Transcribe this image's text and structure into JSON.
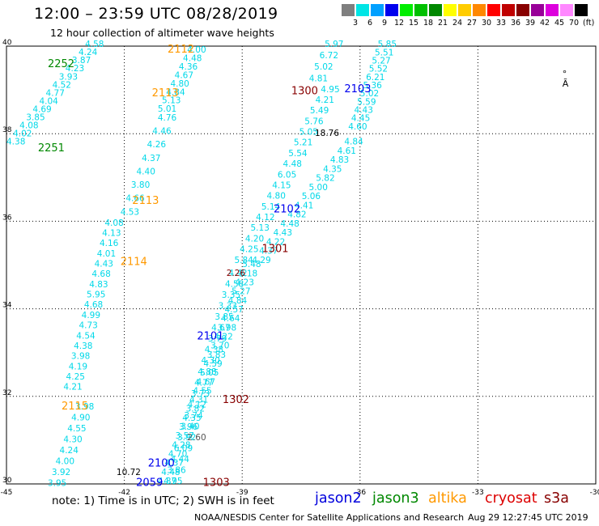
{
  "header": {
    "title": "12:00 – 23:59 UTC 08/28/2019",
    "subtitle": "12 hour collection of altimeter wave heights"
  },
  "legend": {
    "colors": [
      "#7f7f7f",
      "#00e5e5",
      "#00a0ff",
      "#0000ee",
      "#00ee00",
      "#00c000",
      "#008800",
      "#ffff00",
      "#ffcc00",
      "#ff8800",
      "#ff0000",
      "#c00000",
      "#880000",
      "#990099",
      "#dd00dd",
      "#ff88ff",
      "#000000"
    ],
    "labels": [
      "3",
      "6",
      "9",
      "12",
      "15",
      "18",
      "21",
      "24",
      "27",
      "30",
      "33",
      "36",
      "39",
      "42",
      "45",
      "70"
    ],
    "unit": "(ft)"
  },
  "axes": {
    "lon_ticks": [
      "-45",
      "-42",
      "-39",
      "-36",
      "-33",
      "-30"
    ],
    "lat_ticks": [
      "30",
      "32",
      "34",
      "36",
      "38",
      "40"
    ]
  },
  "land_marker": {
    "text": "°\nÃ",
    "color": "#000000"
  },
  "pass_labels": [
    {
      "text": "2252",
      "color": "#008800",
      "lon": -43.95,
      "lat": 39.52
    },
    {
      "text": "2251",
      "color": "#008800",
      "lon": -44.2,
      "lat": 37.6
    },
    {
      "text": "2112",
      "color": "#ff9900",
      "lon": -40.9,
      "lat": 39.85
    },
    {
      "text": "2113",
      "color": "#ff9900",
      "lon": -41.3,
      "lat": 38.85
    },
    {
      "text": "2113",
      "color": "#ff9900",
      "lon": -41.8,
      "lat": 36.4
    },
    {
      "text": "2114",
      "color": "#ff9900",
      "lon": -42.1,
      "lat": 35.0
    },
    {
      "text": "2115",
      "color": "#ff9900",
      "lon": -43.6,
      "lat": 31.7
    },
    {
      "text": "1300",
      "color": "#880000",
      "lon": -37.75,
      "lat": 38.9
    },
    {
      "text": "2103",
      "color": "#0000ee",
      "lon": -36.4,
      "lat": 38.95
    },
    {
      "text": "2102",
      "color": "#0000ee",
      "lon": -38.2,
      "lat": 36.2
    },
    {
      "text": "1301",
      "color": "#880000",
      "lon": -38.5,
      "lat": 35.3
    },
    {
      "text": "2101",
      "color": "#0000ee",
      "lon": -40.15,
      "lat": 33.3
    },
    {
      "text": "1302",
      "color": "#880000",
      "lon": -39.5,
      "lat": 31.85
    },
    {
      "text": "2100",
      "color": "#0000ee",
      "lon": -41.4,
      "lat": 30.4
    },
    {
      "text": "2059",
      "color": "#0000ee",
      "lon": -41.7,
      "lat": 29.95
    },
    {
      "text": "1303",
      "color": "#880000",
      "lon": -40.0,
      "lat": 29.95
    }
  ],
  "wave_heights": [
    {
      "color": "#00d8e8",
      "lon0": -43.0,
      "lat0": 39.98,
      "lon1": -45.0,
      "lat1": 37.75,
      "values": [
        "4.58",
        "4.24",
        "3.87",
        "4.23",
        "3.93",
        "4.52",
        "4.77",
        "4.04",
        "4.69",
        "3.85",
        "4.08",
        "4.02",
        "4.38"
      ]
    },
    {
      "color": "#00d8e8",
      "lon0": -40.4,
      "lat0": 39.85,
      "lat1": 38.5,
      "lon1": -41.15,
      "values": [
        "4.00",
        "4.48",
        "4.36",
        "4.67",
        "4.80",
        "4.84",
        "5.13",
        "5.01"
      ]
    },
    {
      "color": "#00d8e8",
      "lon0": -41.15,
      "lat0": 38.3,
      "lon1": -42.1,
      "lat1": 36.15,
      "values": [
        "4.76",
        "4.46",
        "4.26",
        "4.37",
        "4.40",
        "3.80",
        "4.66",
        "4.53"
      ]
    },
    {
      "color": "#00d8e8",
      "lon0": -42.5,
      "lat0": 35.9,
      "lon1": -43.55,
      "lat1": 32.15,
      "values": [
        "4.08",
        "4.13",
        "4.16",
        "4.01",
        "4.43",
        "4.68",
        "4.83",
        "5.95",
        "4.68",
        "4.99",
        "4.73",
        "4.54",
        "4.38",
        "3.98",
        "4.19",
        "4.25",
        "4.21"
      ]
    },
    {
      "color": "#00d8e8",
      "lon0": -43.25,
      "lat0": 31.7,
      "lon1": -43.95,
      "lat1": 29.95,
      "values": [
        "3.98",
        "4.90",
        "4.55",
        "4.30",
        "4.24",
        "4.00",
        "3.92",
        "3.95"
      ]
    },
    {
      "color": "#00d8e8",
      "lon0": -36.9,
      "lat0": 39.98,
      "lon1": -37.3,
      "lat1": 39.2,
      "values": [
        "5.97",
        "6.72",
        "5.02",
        "4.81"
      ]
    },
    {
      "color": "#00d8e8",
      "lon0": -37.0,
      "lat0": 38.95,
      "lon1": -39.2,
      "lat1": 35.05,
      "values": [
        "4.95",
        "4.21",
        "5.49",
        "5.76",
        "5.05",
        "5.21",
        "5.54",
        "4.48",
        "6.05",
        "4.15",
        "4.80",
        "5.14",
        "4.12",
        "5.13",
        "4.20",
        "4.25",
        "5.84"
      ]
    },
    {
      "color": "#00d8e8",
      "lon0": -35.55,
      "lat0": 39.98,
      "lon1": -36.3,
      "lat1": 38.1,
      "values": [
        "5.85",
        "5.51",
        "5.27",
        "5.52",
        "6.21",
        "5.36",
        "5.02",
        "5.59",
        "4.43",
        "4.45",
        "4.60"
      ]
    },
    {
      "color": "#00d8e8",
      "lon0": -36.4,
      "lat0": 37.75,
      "lon1": -38.75,
      "lat1": 35.05,
      "values": [
        "4.84",
        "4.61",
        "4.83",
        "4.35",
        "5.82",
        "5.00",
        "5.06",
        "4.41",
        "4.82",
        "4.48",
        "4.43",
        "4.22",
        "4.37",
        "4.29"
      ]
    },
    {
      "color": "#00d8e8",
      "lon0": -39.0,
      "lat0": 34.95,
      "lon1": -41.15,
      "lat1": 30.0,
      "values": [
        "5.48",
        "3.18",
        "4.23",
        "5.27",
        "4.84",
        "4.57",
        "4.64",
        "3.98",
        "4.22",
        "3.70",
        "3.83",
        "4.59",
        "5.05",
        "4.67",
        "4.55",
        "4.31",
        "3.82",
        "4.35",
        "3.96",
        "3.57",
        "4.28",
        "4.70",
        "4.37",
        "4.48",
        "4.37"
      ]
    },
    {
      "color": "#00d8e8",
      "lon0": -39.35,
      "lat0": 34.75,
      "lon1": -41.0,
      "lat1": 30.0,
      "values": [
        "4.42",
        "4.58",
        "3.35",
        "3.33",
        "3.85",
        "4.67",
        "3.79",
        "4.38",
        "4.30",
        "4.88",
        "4.77",
        "3.73",
        "4.12",
        "3.74",
        "3.40",
        "3.92",
        "6.09",
        "4.44",
        "3.86",
        "4.95"
      ]
    }
  ],
  "black_values": [
    {
      "text": "18.76",
      "lon": -37.15,
      "lat": 37.95,
      "color": "#000000"
    },
    {
      "text": "2.26",
      "lon": -39.4,
      "lat": 34.75,
      "color": "#880000"
    },
    {
      "text": "2.60",
      "lon": -40.4,
      "lat": 31.0,
      "color": "#555555"
    },
    {
      "text": "10.72",
      "lon": -42.2,
      "lat": 30.2,
      "color": "#000000"
    }
  ],
  "footer": {
    "note": "note:  1) Time is in UTC;  2) SWH is in feet",
    "satellites": [
      {
        "name": "jason2",
        "color": "#0000dd"
      },
      {
        "name": "jason3",
        "color": "#008800"
      },
      {
        "name": "altika",
        "color": "#ff9900"
      },
      {
        "name": "cryosat",
        "color": "#dd0000"
      },
      {
        "name": "s3a",
        "color": "#880000"
      }
    ],
    "credit": "NOAA/NESDIS Center for Satellite Applications and Research",
    "timestamp": "Aug 29 12:27:45 UTC 2019"
  }
}
